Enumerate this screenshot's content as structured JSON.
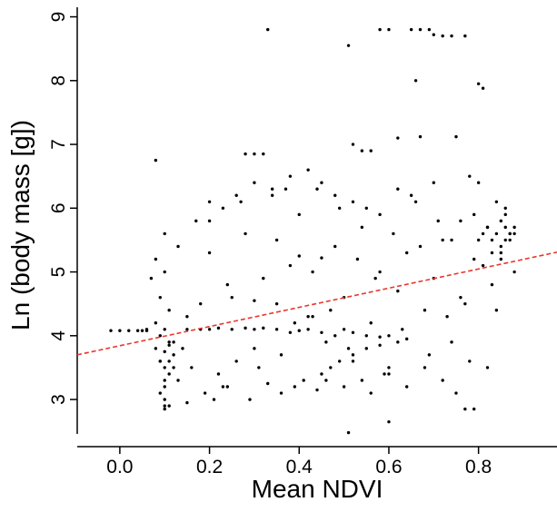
{
  "chart_data": {
    "type": "scatter",
    "x_label": "Mean NDVI",
    "y_label": "Ln (body mass [g])",
    "xlim": [
      -0.095,
      0.975
    ],
    "ylim": [
      2.46,
      9.15
    ],
    "xticks": [
      {
        "value": 0,
        "label": "0.0"
      },
      0.2,
      0.4,
      0.6,
      0.8
    ],
    "yticks": [
      3,
      4,
      5,
      6,
      7,
      8,
      9
    ],
    "series": [
      {
        "color": "#000000",
        "x": [
          0.08,
          0.09,
          0.1,
          0.11,
          0.12,
          0.09,
          0.1,
          0.11,
          0.08,
          0.1,
          0.12,
          0.09,
          0.1,
          0.11,
          0.1,
          0.09,
          0.12,
          0.1,
          0.11,
          0.08,
          0.1,
          0.1,
          0.09,
          0.11,
          0.13,
          0.06,
          0.07,
          0.14,
          0.15,
          0.16,
          -0.02,
          0.0,
          0.02,
          0.04,
          0.05,
          0.06,
          0.15,
          0.18,
          0.2,
          0.22,
          0.25,
          0.28,
          0.3,
          0.32,
          0.35,
          0.38,
          0.4,
          0.42,
          0.45,
          0.48,
          0.5,
          0.52,
          0.55,
          0.58,
          0.6,
          0.25,
          0.3,
          0.35,
          0.4,
          0.45,
          0.18,
          0.2,
          0.22,
          0.24,
          0.26,
          0.28,
          0.3,
          0.32,
          0.34,
          0.36,
          0.38,
          0.4,
          0.42,
          0.44,
          0.46,
          0.48,
          0.5,
          0.52,
          0.54,
          0.56,
          0.58,
          0.6,
          0.62,
          0.64,
          0.66,
          0.68,
          0.7,
          0.72,
          0.74,
          0.76,
          0.2,
          0.23,
          0.27,
          0.31,
          0.35,
          0.37,
          0.41,
          0.43,
          0.47,
          0.49,
          0.51,
          0.53,
          0.57,
          0.59,
          0.61,
          0.63,
          0.67,
          0.69,
          0.71,
          0.73,
          0.77,
          0.79,
          0.81,
          0.83,
          0.85,
          0.87,
          0.88,
          0.86,
          0.84,
          0.82,
          0.8,
          0.81,
          0.82,
          0.83,
          0.84,
          0.85,
          0.86,
          0.87,
          0.88,
          0.85,
          0.86,
          0.84,
          0.87,
          0.83,
          0.88,
          0.86,
          0.85,
          0.8,
          0.78,
          0.76,
          0.15,
          0.19,
          0.21,
          0.24,
          0.29,
          0.33,
          0.36,
          0.39,
          0.44,
          0.46,
          0.5,
          0.54,
          0.56,
          0.6,
          0.64,
          0.68,
          0.72,
          0.75,
          0.78,
          0.82,
          0.1,
          0.13,
          0.17,
          0.2,
          0.23,
          0.26,
          0.3,
          0.34,
          0.38,
          0.42,
          0.45,
          0.48,
          0.52,
          0.55,
          0.58,
          0.62,
          0.65,
          0.7,
          0.74,
          0.79,
          0.33,
          0.58,
          0.6,
          0.65,
          0.67,
          0.69,
          0.7,
          0.72,
          0.74,
          0.77,
          0.51,
          0.66,
          0.8,
          0.81,
          0.62,
          0.67,
          0.75,
          0.52,
          0.54,
          0.56,
          0.28,
          0.3,
          0.32,
          0.08,
          0.51,
          0.6,
          0.77,
          0.79,
          0.1,
          0.11,
          0.45,
          0.47,
          0.49,
          0.52,
          0.55,
          0.58,
          0.62,
          0.64,
          0.43,
          0.39
        ],
        "values": [
          3.8,
          3.6,
          3.5,
          3.9,
          3.7,
          4.0,
          3.3,
          3.4,
          4.2,
          3.2,
          3.9,
          3.6,
          3.75,
          3.85,
          4.1,
          4.6,
          3.5,
          5.0,
          4.4,
          5.2,
          3.0,
          2.9,
          3.1,
          3.6,
          3.3,
          4.1,
          4.9,
          3.8,
          4.3,
          3.5,
          4.08,
          4.08,
          4.08,
          4.08,
          4.08,
          4.08,
          4.1,
          4.1,
          4.1,
          4.12,
          4.1,
          4.12,
          4.1,
          4.12,
          4.1,
          4.05,
          4.08,
          4.1,
          4.05,
          4.0,
          4.1,
          4.05,
          4.0,
          3.98,
          4.0,
          4.6,
          4.55,
          4.5,
          5.25,
          5.22,
          4.5,
          5.3,
          3.4,
          4.8,
          3.6,
          5.6,
          3.8,
          4.9,
          6.2,
          3.7,
          5.1,
          5.9,
          4.3,
          6.3,
          3.9,
          5.4,
          4.6,
          3.6,
          5.7,
          4.2,
          5.0,
          3.5,
          4.7,
          5.3,
          6.1,
          4.4,
          4.9,
          5.5,
          3.9,
          5.8,
          5.8,
          3.2,
          6.1,
          3.5,
          5.5,
          6.3,
          3.3,
          5.0,
          4.4,
          6.0,
          3.8,
          5.2,
          4.9,
          3.4,
          5.6,
          4.1,
          5.4,
          3.7,
          5.8,
          4.3,
          4.5,
          5.9,
          5.1,
          4.8,
          5.3,
          5.6,
          5.0,
          6.0,
          4.4,
          5.7,
          5.5,
          5.6,
          5.7,
          5.5,
          5.6,
          5.8,
          5.5,
          5.6,
          5.7,
          5.4,
          5.9,
          6.1,
          5.5,
          5.3,
          5.6,
          5.7,
          5.2,
          6.4,
          6.5,
          4.6,
          2.95,
          3.1,
          3.0,
          3.2,
          3.0,
          3.25,
          3.1,
          3.2,
          3.15,
          3.3,
          3.2,
          3.3,
          3.1,
          3.4,
          3.2,
          3.5,
          3.3,
          3.1,
          3.6,
          3.5,
          5.6,
          5.4,
          5.8,
          6.1,
          6.0,
          6.2,
          6.4,
          6.3,
          6.5,
          6.6,
          6.4,
          6.2,
          6.1,
          6.0,
          5.9,
          6.3,
          6.2,
          6.4,
          5.5,
          5.2,
          8.8,
          8.8,
          8.8,
          8.8,
          8.8,
          8.8,
          8.72,
          8.7,
          8.7,
          8.7,
          8.55,
          8.0,
          7.95,
          7.88,
          7.1,
          7.12,
          7.12,
          7.0,
          6.9,
          6.9,
          6.85,
          6.85,
          6.85,
          6.75,
          2.48,
          2.65,
          2.85,
          2.85,
          2.85,
          2.9,
          3.4,
          3.5,
          3.6,
          3.7,
          3.8,
          3.85,
          3.9,
          3.95,
          4.3,
          4.2
        ]
      }
    ],
    "trend": {
      "color": "#e8362e",
      "x": [
        -0.095,
        0.975
      ],
      "y": [
        3.7,
        5.31
      ]
    }
  }
}
